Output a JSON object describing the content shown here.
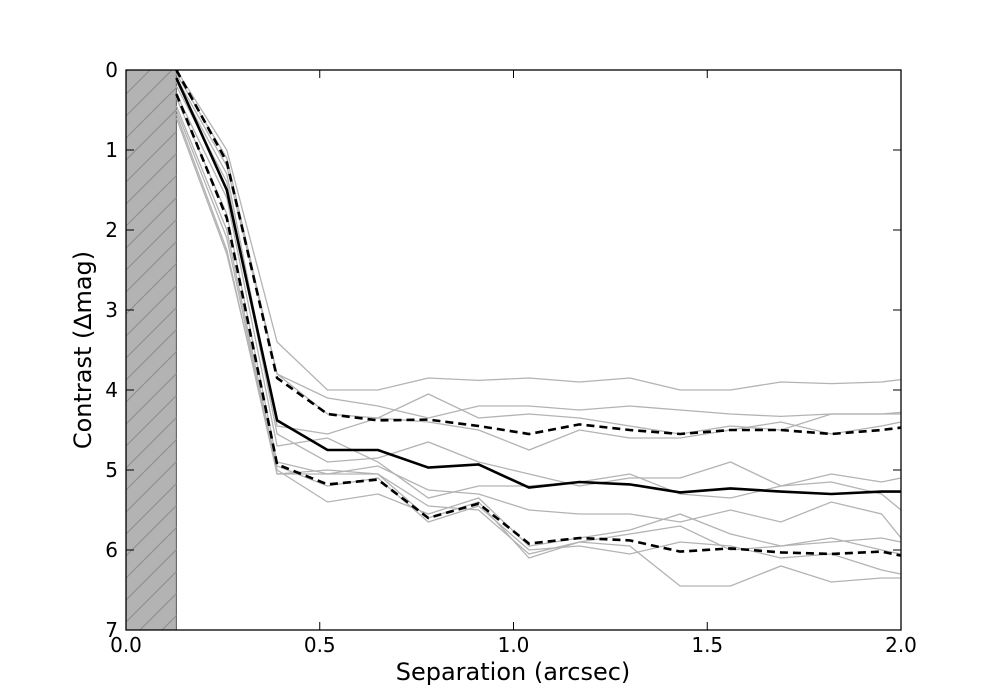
{
  "chart_data": {
    "type": "line",
    "xlabel": "Separation (arcsec)",
    "ylabel": "Contrast (∆mag)",
    "xlim": [
      0.0,
      2.0
    ],
    "ylim": [
      0,
      7
    ],
    "y_inverted": true,
    "grid": false,
    "legend": "none",
    "x_ticks": [
      "0.0",
      "0.5",
      "1.0",
      "1.5",
      "2.0"
    ],
    "y_ticks": [
      "0",
      "1",
      "2",
      "3",
      "4",
      "5",
      "6",
      "7"
    ],
    "excluded_region": {
      "x": [
        0.0,
        0.13
      ],
      "fill": "#b3b3b3",
      "hatch": "/"
    },
    "x": [
      0.13,
      0.26,
      0.39,
      0.52,
      0.65,
      0.78,
      0.91,
      1.04,
      1.17,
      1.3,
      1.43,
      1.56,
      1.69,
      1.82,
      1.95,
      2.0
    ],
    "individual_curves": {
      "color": "#b3b3b3",
      "series": [
        {
          "values": [
            0.0,
            1.0,
            3.4,
            4.0,
            4.0,
            3.85,
            3.88,
            3.85,
            3.9,
            3.85,
            4.0,
            4.0,
            3.9,
            3.92,
            3.9,
            3.87
          ]
        },
        {
          "values": [
            0.05,
            1.1,
            3.8,
            4.1,
            4.2,
            4.35,
            4.2,
            4.2,
            4.25,
            4.2,
            4.25,
            4.3,
            4.33,
            4.3,
            4.3,
            4.28
          ]
        },
        {
          "values": [
            0.1,
            1.2,
            3.8,
            4.3,
            4.35,
            4.05,
            4.35,
            4.3,
            4.35,
            4.45,
            4.55,
            4.45,
            4.5,
            4.3,
            4.3,
            4.3
          ]
        },
        {
          "values": [
            0.15,
            1.3,
            4.45,
            4.55,
            4.35,
            4.4,
            4.5,
            4.75,
            4.5,
            4.6,
            4.6,
            4.5,
            4.4,
            4.55,
            4.45,
            4.4
          ]
        },
        {
          "values": [
            0.2,
            1.4,
            4.55,
            4.9,
            4.85,
            4.65,
            4.9,
            5.05,
            5.2,
            5.1,
            5.1,
            4.9,
            5.2,
            5.05,
            5.15,
            5.1
          ]
        },
        {
          "values": [
            0.3,
            1.6,
            4.7,
            4.6,
            4.9,
            5.35,
            5.2,
            5.2,
            5.15,
            5.05,
            5.3,
            5.35,
            5.2,
            5.15,
            5.3,
            5.5
          ]
        },
        {
          "values": [
            0.35,
            1.8,
            4.9,
            5.05,
            4.95,
            5.25,
            5.3,
            5.5,
            5.55,
            5.55,
            5.65,
            5.5,
            5.65,
            5.4,
            5.55,
            5.85
          ]
        },
        {
          "values": [
            0.45,
            2.0,
            5.0,
            5.4,
            5.3,
            5.55,
            5.35,
            5.95,
            5.85,
            5.75,
            5.55,
            5.8,
            5.95,
            5.85,
            6.0,
            6.05
          ]
        },
        {
          "values": [
            0.5,
            2.1,
            5.05,
            5.0,
            5.05,
            5.45,
            5.5,
            6.05,
            5.9,
            5.8,
            5.7,
            6.0,
            5.95,
            5.9,
            5.85,
            5.9
          ]
        },
        {
          "values": [
            0.55,
            2.25,
            5.05,
            5.05,
            5.05,
            5.6,
            5.4,
            6.1,
            5.9,
            5.95,
            6.45,
            6.45,
            6.2,
            6.4,
            6.35,
            6.35
          ]
        },
        {
          "values": [
            0.6,
            2.3,
            4.95,
            5.2,
            5.1,
            5.65,
            5.45,
            6.0,
            5.95,
            6.05,
            5.9,
            5.95,
            6.1,
            6.05,
            6.25,
            6.3
          ]
        }
      ]
    },
    "summary_curves": [
      {
        "style": "dashed",
        "values": [
          0.0,
          1.15,
          3.85,
          4.3,
          4.38,
          4.37,
          4.45,
          4.55,
          4.43,
          4.5,
          4.55,
          4.5,
          4.5,
          4.55,
          4.5,
          4.47
        ]
      },
      {
        "style": "solid",
        "values": [
          0.1,
          1.5,
          4.38,
          4.75,
          4.75,
          4.97,
          4.93,
          5.22,
          5.15,
          5.18,
          5.28,
          5.23,
          5.27,
          5.3,
          5.27,
          5.27
        ]
      },
      {
        "style": "dashed",
        "values": [
          0.3,
          1.85,
          4.93,
          5.18,
          5.12,
          5.6,
          5.42,
          5.92,
          5.85,
          5.88,
          6.02,
          5.98,
          6.03,
          6.05,
          6.02,
          6.07
        ]
      }
    ]
  }
}
